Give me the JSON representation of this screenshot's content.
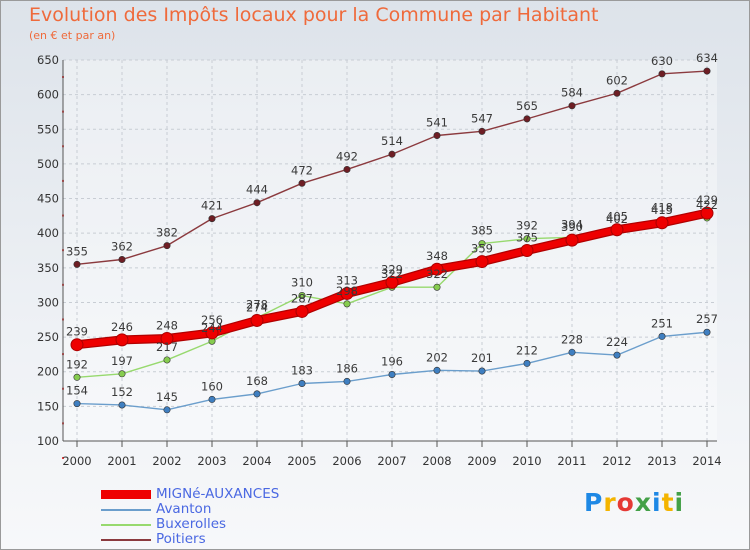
{
  "header": {
    "title": "Evolution des Impôts locaux pour la Commune par Habitant",
    "subtitle": "(en € et par an)"
  },
  "logo": {
    "text": "Proxiti",
    "colors": [
      "#1e88e5",
      "#f4b400",
      "#e53935",
      "#43a047",
      "#1e88e5",
      "#f4b400",
      "#43a047"
    ]
  },
  "chart_data": {
    "type": "line",
    "title": "Evolution des Impôts locaux pour la Commune par Habitant",
    "subtitle": "(en € et par an)",
    "x": [
      "2000",
      "2001",
      "2002",
      "2003",
      "2004",
      "2005",
      "2006",
      "2007",
      "2008",
      "2009",
      "2010",
      "2011",
      "2012",
      "2013",
      "2014"
    ],
    "ylim": [
      100,
      650
    ],
    "yticks": [
      100,
      150,
      200,
      250,
      300,
      350,
      400,
      450,
      500,
      550,
      600,
      650
    ],
    "grid": true,
    "legend_position": "bottom-left",
    "series": [
      {
        "name": "MIGNé-AUXANCES",
        "color": "#ee0000",
        "marker": "#ee0000",
        "bold": true,
        "values": [
          239,
          246,
          248,
          256,
          274,
          287,
          313,
          329,
          348,
          359,
          375,
          390,
          405,
          415,
          429
        ]
      },
      {
        "name": "Avanton",
        "color": "#6b9ecc",
        "marker": "#3f7fc1",
        "bold": false,
        "values": [
          154,
          152,
          145,
          160,
          168,
          183,
          186,
          196,
          202,
          201,
          212,
          228,
          224,
          251,
          257
        ]
      },
      {
        "name": "Buxerolles",
        "color": "#97d96e",
        "marker": "#86cc4f",
        "bold": false,
        "values": [
          192,
          197,
          217,
          244,
          278,
          310,
          298,
          322,
          322,
          385,
          392,
          394,
          402,
          418,
          422
        ]
      },
      {
        "name": "Poitiers",
        "color": "#8b3a3e",
        "marker": "#6e1e24",
        "bold": false,
        "values": [
          355,
          362,
          382,
          421,
          444,
          472,
          492,
          514,
          541,
          547,
          565,
          584,
          602,
          630,
          634
        ]
      }
    ]
  }
}
